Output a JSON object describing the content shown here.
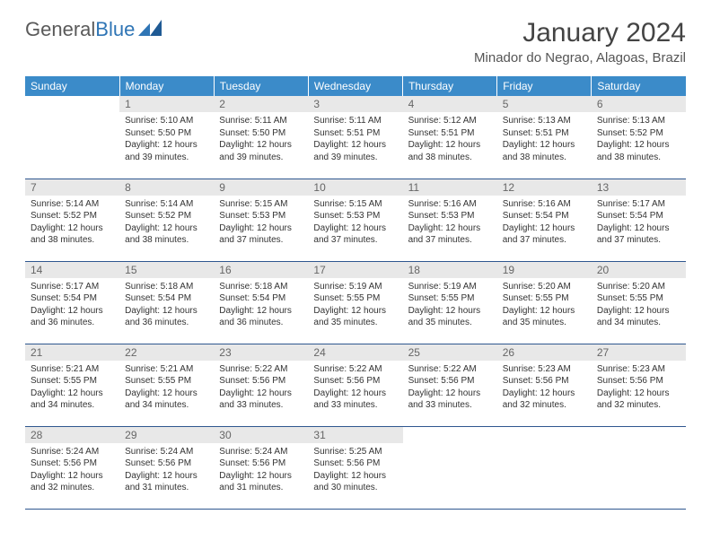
{
  "logo": {
    "text1": "General",
    "text2": "Blue"
  },
  "title": "January 2024",
  "location": "Minador do Negrao, Alagoas, Brazil",
  "colors": {
    "header_bg": "#3b8bc9",
    "header_text": "#ffffff",
    "daynum_bg": "#e8e8e8",
    "daynum_text": "#666666",
    "row_border": "#2f578f",
    "logo_blue": "#2f75b5",
    "body_text": "#333333",
    "background": "#ffffff"
  },
  "fonts": {
    "title_size_pt": 22,
    "location_size_pt": 11,
    "header_size_pt": 9,
    "daynum_size_pt": 9,
    "cell_size_pt": 7.5
  },
  "layout": {
    "columns": 7,
    "rows": 5,
    "first_weekday_offset": 1
  },
  "weekdays": [
    "Sunday",
    "Monday",
    "Tuesday",
    "Wednesday",
    "Thursday",
    "Friday",
    "Saturday"
  ],
  "days": [
    {
      "n": 1,
      "sunrise": "5:10 AM",
      "sunset": "5:50 PM",
      "daylight": "12 hours and 39 minutes."
    },
    {
      "n": 2,
      "sunrise": "5:11 AM",
      "sunset": "5:50 PM",
      "daylight": "12 hours and 39 minutes."
    },
    {
      "n": 3,
      "sunrise": "5:11 AM",
      "sunset": "5:51 PM",
      "daylight": "12 hours and 39 minutes."
    },
    {
      "n": 4,
      "sunrise": "5:12 AM",
      "sunset": "5:51 PM",
      "daylight": "12 hours and 38 minutes."
    },
    {
      "n": 5,
      "sunrise": "5:13 AM",
      "sunset": "5:51 PM",
      "daylight": "12 hours and 38 minutes."
    },
    {
      "n": 6,
      "sunrise": "5:13 AM",
      "sunset": "5:52 PM",
      "daylight": "12 hours and 38 minutes."
    },
    {
      "n": 7,
      "sunrise": "5:14 AM",
      "sunset": "5:52 PM",
      "daylight": "12 hours and 38 minutes."
    },
    {
      "n": 8,
      "sunrise": "5:14 AM",
      "sunset": "5:52 PM",
      "daylight": "12 hours and 38 minutes."
    },
    {
      "n": 9,
      "sunrise": "5:15 AM",
      "sunset": "5:53 PM",
      "daylight": "12 hours and 37 minutes."
    },
    {
      "n": 10,
      "sunrise": "5:15 AM",
      "sunset": "5:53 PM",
      "daylight": "12 hours and 37 minutes."
    },
    {
      "n": 11,
      "sunrise": "5:16 AM",
      "sunset": "5:53 PM",
      "daylight": "12 hours and 37 minutes."
    },
    {
      "n": 12,
      "sunrise": "5:16 AM",
      "sunset": "5:54 PM",
      "daylight": "12 hours and 37 minutes."
    },
    {
      "n": 13,
      "sunrise": "5:17 AM",
      "sunset": "5:54 PM",
      "daylight": "12 hours and 37 minutes."
    },
    {
      "n": 14,
      "sunrise": "5:17 AM",
      "sunset": "5:54 PM",
      "daylight": "12 hours and 36 minutes."
    },
    {
      "n": 15,
      "sunrise": "5:18 AM",
      "sunset": "5:54 PM",
      "daylight": "12 hours and 36 minutes."
    },
    {
      "n": 16,
      "sunrise": "5:18 AM",
      "sunset": "5:54 PM",
      "daylight": "12 hours and 36 minutes."
    },
    {
      "n": 17,
      "sunrise": "5:19 AM",
      "sunset": "5:55 PM",
      "daylight": "12 hours and 35 minutes."
    },
    {
      "n": 18,
      "sunrise": "5:19 AM",
      "sunset": "5:55 PM",
      "daylight": "12 hours and 35 minutes."
    },
    {
      "n": 19,
      "sunrise": "5:20 AM",
      "sunset": "5:55 PM",
      "daylight": "12 hours and 35 minutes."
    },
    {
      "n": 20,
      "sunrise": "5:20 AM",
      "sunset": "5:55 PM",
      "daylight": "12 hours and 34 minutes."
    },
    {
      "n": 21,
      "sunrise": "5:21 AM",
      "sunset": "5:55 PM",
      "daylight": "12 hours and 34 minutes."
    },
    {
      "n": 22,
      "sunrise": "5:21 AM",
      "sunset": "5:55 PM",
      "daylight": "12 hours and 34 minutes."
    },
    {
      "n": 23,
      "sunrise": "5:22 AM",
      "sunset": "5:56 PM",
      "daylight": "12 hours and 33 minutes."
    },
    {
      "n": 24,
      "sunrise": "5:22 AM",
      "sunset": "5:56 PM",
      "daylight": "12 hours and 33 minutes."
    },
    {
      "n": 25,
      "sunrise": "5:22 AM",
      "sunset": "5:56 PM",
      "daylight": "12 hours and 33 minutes."
    },
    {
      "n": 26,
      "sunrise": "5:23 AM",
      "sunset": "5:56 PM",
      "daylight": "12 hours and 32 minutes."
    },
    {
      "n": 27,
      "sunrise": "5:23 AM",
      "sunset": "5:56 PM",
      "daylight": "12 hours and 32 minutes."
    },
    {
      "n": 28,
      "sunrise": "5:24 AM",
      "sunset": "5:56 PM",
      "daylight": "12 hours and 32 minutes."
    },
    {
      "n": 29,
      "sunrise": "5:24 AM",
      "sunset": "5:56 PM",
      "daylight": "12 hours and 31 minutes."
    },
    {
      "n": 30,
      "sunrise": "5:24 AM",
      "sunset": "5:56 PM",
      "daylight": "12 hours and 31 minutes."
    },
    {
      "n": 31,
      "sunrise": "5:25 AM",
      "sunset": "5:56 PM",
      "daylight": "12 hours and 30 minutes."
    }
  ]
}
